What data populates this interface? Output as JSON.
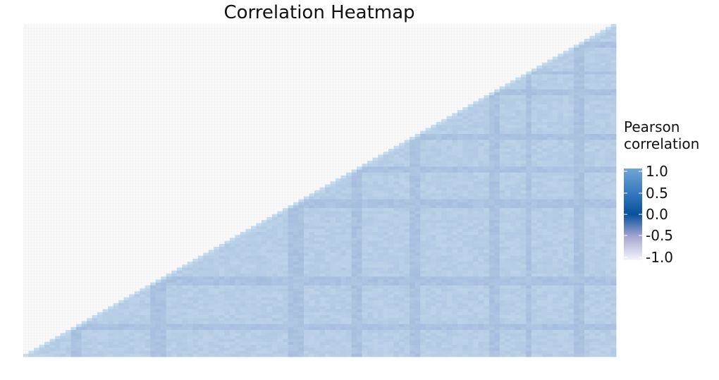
{
  "chart_data": {
    "type": "heatmap",
    "title": "Correlation Heatmap",
    "xlabel": "",
    "ylabel": "",
    "layout": "lower-triangle",
    "grid": false,
    "legend": {
      "title_line1": "Pearson",
      "title_line2": "correlation",
      "placement": "right",
      "ticks": [
        "1.0",
        "0.5",
        "0.0",
        "-0.5",
        "-1.0"
      ],
      "range": [
        -1.0,
        1.0
      ]
    },
    "colorscale": [
      {
        "value": -1.0,
        "color": "#f4f4fb"
      },
      {
        "value": -0.5,
        "color": "#a9a9d2"
      },
      {
        "value": 0.0,
        "color": "#08519c"
      },
      {
        "value": 0.5,
        "color": "#3b7cc0"
      },
      {
        "value": 1.0,
        "color": "#6fa6d6"
      }
    ],
    "cell_color_light": "#c6dcee",
    "cell_color_dark": "#9db6d9",
    "empty_color": "#f7f7f7"
  }
}
